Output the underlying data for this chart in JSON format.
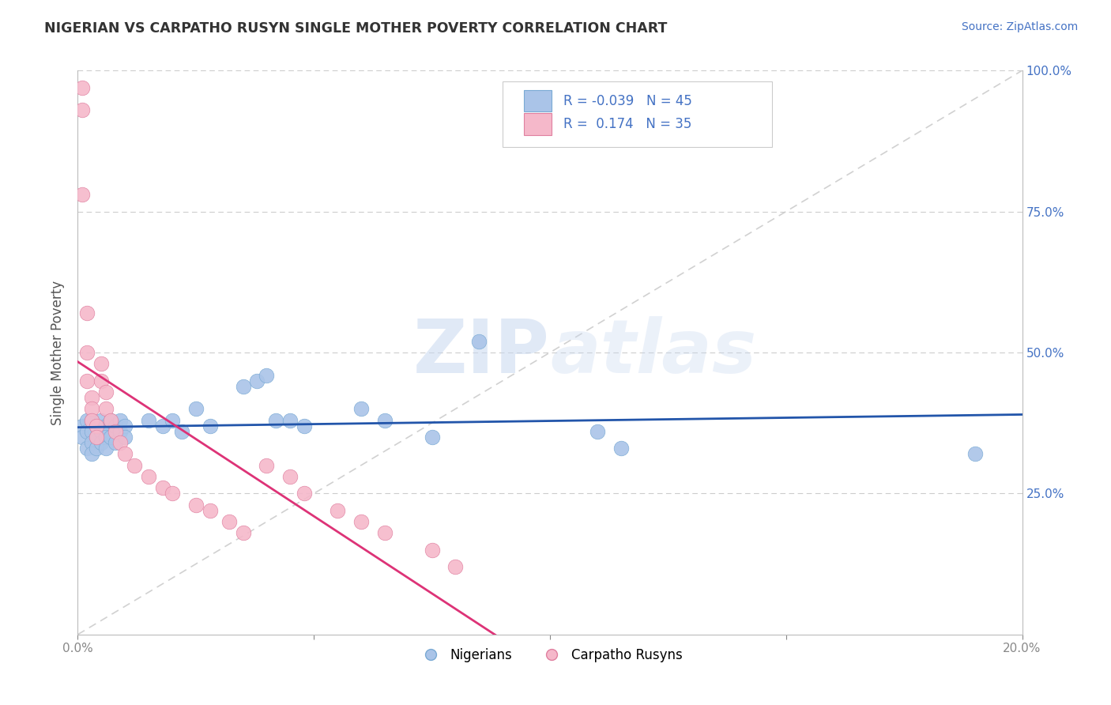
{
  "title": "NIGERIAN VS CARPATHO RUSYN SINGLE MOTHER POVERTY CORRELATION CHART",
  "source": "Source: ZipAtlas.com",
  "ylabel": "Single Mother Poverty",
  "xlim": [
    0.0,
    0.2
  ],
  "ylim": [
    0.0,
    1.0
  ],
  "nigerian_color": "#aac4e8",
  "nigerian_edge": "#7aaad4",
  "rusyn_color": "#f5b8ca",
  "rusyn_edge": "#e080a0",
  "trend_blue": "#2255aa",
  "trend_pink": "#dd3377",
  "diagonal_color": "#cccccc",
  "background_color": "#ffffff",
  "grid_color": "#cccccc",
  "watermark_color": "#dde8f5",
  "nigerian_x": [
    0.001,
    0.001,
    0.002,
    0.002,
    0.002,
    0.003,
    0.003,
    0.003,
    0.003,
    0.004,
    0.004,
    0.004,
    0.005,
    0.005,
    0.005,
    0.006,
    0.006,
    0.006,
    0.007,
    0.007,
    0.008,
    0.008,
    0.009,
    0.009,
    0.01,
    0.01,
    0.015,
    0.018,
    0.02,
    0.022,
    0.025,
    0.028,
    0.035,
    0.038,
    0.04,
    0.042,
    0.045,
    0.048,
    0.06,
    0.065,
    0.075,
    0.085,
    0.11,
    0.115,
    0.19
  ],
  "nigerian_y": [
    0.37,
    0.35,
    0.38,
    0.36,
    0.33,
    0.38,
    0.36,
    0.34,
    0.32,
    0.37,
    0.35,
    0.33,
    0.38,
    0.36,
    0.34,
    0.37,
    0.35,
    0.33,
    0.38,
    0.35,
    0.37,
    0.34,
    0.38,
    0.36,
    0.37,
    0.35,
    0.38,
    0.37,
    0.38,
    0.36,
    0.4,
    0.37,
    0.44,
    0.45,
    0.46,
    0.38,
    0.38,
    0.37,
    0.4,
    0.38,
    0.35,
    0.52,
    0.36,
    0.33,
    0.32
  ],
  "rusyn_x": [
    0.001,
    0.001,
    0.001,
    0.002,
    0.002,
    0.002,
    0.003,
    0.003,
    0.003,
    0.004,
    0.004,
    0.005,
    0.005,
    0.006,
    0.006,
    0.007,
    0.008,
    0.009,
    0.01,
    0.012,
    0.015,
    0.018,
    0.02,
    0.025,
    0.028,
    0.032,
    0.035,
    0.04,
    0.045,
    0.048,
    0.055,
    0.06,
    0.065,
    0.075,
    0.08
  ],
  "rusyn_y": [
    0.97,
    0.93,
    0.78,
    0.57,
    0.5,
    0.45,
    0.42,
    0.4,
    0.38,
    0.37,
    0.35,
    0.48,
    0.45,
    0.43,
    0.4,
    0.38,
    0.36,
    0.34,
    0.32,
    0.3,
    0.28,
    0.26,
    0.25,
    0.23,
    0.22,
    0.2,
    0.18,
    0.3,
    0.28,
    0.25,
    0.22,
    0.2,
    0.18,
    0.15,
    0.12
  ]
}
